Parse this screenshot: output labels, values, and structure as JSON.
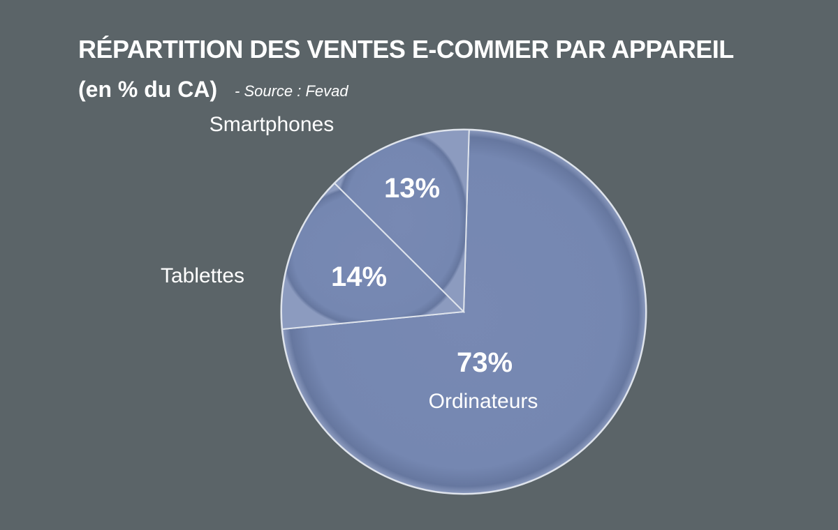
{
  "title": "RÉPARTITION DES VENTES E-COMMER PAR APPAREIL",
  "subtitle": "(en % du CA)",
  "source": "- Source : Fevad",
  "colors": {
    "background": "#5b6468",
    "slice_fill": "#7588b2",
    "slice_stroke": "#dfe4ec",
    "text": "#ffffff"
  },
  "chart_data": {
    "type": "pie",
    "title": "RÉPARTITION DES VENTES E-COMMER PAR APPAREIL",
    "subtitle": "(en % du CA) - Source : Fevad",
    "unit": "%",
    "slices": [
      {
        "label": "Ordinateurs",
        "value": 73,
        "value_label": "73%"
      },
      {
        "label": "Tablettes",
        "value": 14,
        "value_label": "14%"
      },
      {
        "label": "Smartphones",
        "value": 13,
        "value_label": "13%"
      }
    ]
  }
}
